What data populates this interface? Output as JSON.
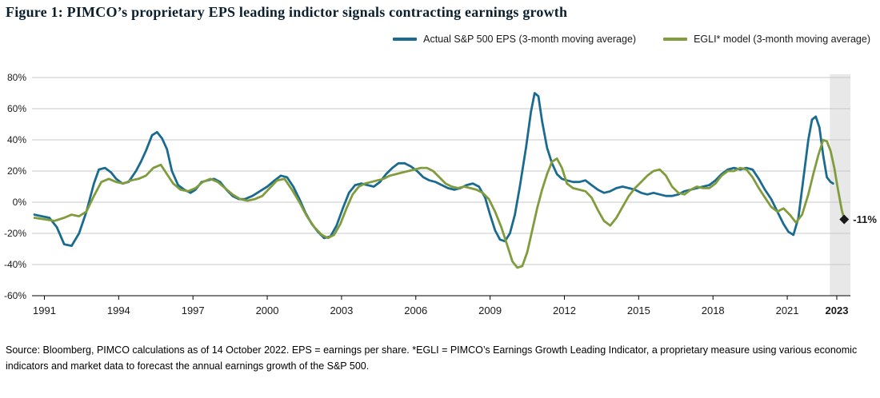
{
  "figure": {
    "title": "Figure 1: PIMCO’s proprietary EPS leading indictor signals contracting earnings growth",
    "source": "Source: Bloomberg, PIMCO calculations as of 14 October 2022. EPS = earnings per share. *EGLI = PIMCO’s Earnings Growth Leading Indicator, a proprietary measure using various economic indicators and market data to forecast the annual earnings growth of the S&P 500."
  },
  "chart_data": {
    "type": "line",
    "title": "Figure 1: PIMCO’s proprietary EPS leading indictor signals contracting earnings growth",
    "xlabel": "",
    "ylabel": "",
    "xlim": [
      1990.5,
      2023.55
    ],
    "ylim": [
      -60,
      80
    ],
    "grid": "horizontal",
    "legend_position": "top-right",
    "colors": {
      "grid": "#c8c8c8",
      "axis": "#000000",
      "text": "#1a1a1a",
      "background": "#ffffff"
    },
    "y_ticks": [
      {
        "value": 80,
        "label": "80%"
      },
      {
        "value": 60,
        "label": "60%"
      },
      {
        "value": 40,
        "label": "40%"
      },
      {
        "value": 20,
        "label": "20%"
      },
      {
        "value": 0,
        "label": "0%"
      },
      {
        "value": -20,
        "label": "-20%"
      },
      {
        "value": -40,
        "label": "-40%"
      },
      {
        "value": -60,
        "label": "-60%"
      }
    ],
    "x_ticks": [
      {
        "value": 1991,
        "label": "1991",
        "bold": false
      },
      {
        "value": 1994,
        "label": "1994",
        "bold": false
      },
      {
        "value": 1997,
        "label": "1997",
        "bold": false
      },
      {
        "value": 2000,
        "label": "2000",
        "bold": false
      },
      {
        "value": 2003,
        "label": "2003",
        "bold": false
      },
      {
        "value": 2006,
        "label": "2006",
        "bold": false
      },
      {
        "value": 2009,
        "label": "2009",
        "bold": false
      },
      {
        "value": 2012,
        "label": "2012",
        "bold": false
      },
      {
        "value": 2015,
        "label": "2015",
        "bold": false
      },
      {
        "value": 2018,
        "label": "2018",
        "bold": false
      },
      {
        "value": 2021,
        "label": "2021",
        "bold": false
      },
      {
        "value": 2023,
        "label": "2023",
        "bold": true
      }
    ],
    "shaded_region": {
      "x0": 2022.72,
      "x1": 2023.55,
      "color": "#e8e8e8"
    },
    "annotation": {
      "x": 2023.3,
      "y": -11,
      "label": "-11%",
      "marker": "diamond",
      "color": "#1a1a1a"
    },
    "series": [
      {
        "name": "Actual S&P 500 EPS (3-month moving average)",
        "color": "#1a6b8f",
        "x": [
          1990.6,
          1990.9,
          1991.2,
          1991.5,
          1991.8,
          1992.1,
          1992.4,
          1992.7,
          1993.0,
          1993.2,
          1993.45,
          1993.7,
          1993.9,
          1994.15,
          1994.4,
          1994.7,
          1994.9,
          1995.1,
          1995.35,
          1995.55,
          1995.75,
          1995.95,
          1996.15,
          1996.4,
          1996.65,
          1996.9,
          1997.1,
          1997.35,
          1997.6,
          1997.85,
          1998.1,
          1998.35,
          1998.6,
          1998.85,
          1999.1,
          1999.4,
          1999.7,
          2000.0,
          2000.3,
          2000.55,
          2000.8,
          2001.05,
          2001.3,
          2001.55,
          2001.8,
          2002.05,
          2002.3,
          2002.55,
          2002.8,
          2003.05,
          2003.3,
          2003.55,
          2003.8,
          2004.05,
          2004.3,
          2004.55,
          2004.8,
          2005.05,
          2005.3,
          2005.55,
          2005.8,
          2006.05,
          2006.3,
          2006.55,
          2006.8,
          2007.05,
          2007.3,
          2007.55,
          2007.8,
          2008.05,
          2008.3,
          2008.55,
          2008.8,
          2009.0,
          2009.2,
          2009.4,
          2009.6,
          2009.8,
          2010.0,
          2010.2,
          2010.45,
          2010.65,
          2010.8,
          2010.95,
          2011.1,
          2011.3,
          2011.5,
          2011.7,
          2011.9,
          2012.1,
          2012.35,
          2012.6,
          2012.85,
          2013.1,
          2013.35,
          2013.6,
          2013.85,
          2014.1,
          2014.35,
          2014.6,
          2014.85,
          2015.1,
          2015.35,
          2015.6,
          2015.85,
          2016.1,
          2016.35,
          2016.6,
          2016.85,
          2017.1,
          2017.35,
          2017.6,
          2017.85,
          2018.1,
          2018.35,
          2018.6,
          2018.85,
          2019.1,
          2019.35,
          2019.6,
          2019.85,
          2020.1,
          2020.35,
          2020.6,
          2020.85,
          2021.05,
          2021.25,
          2021.45,
          2021.65,
          2021.85,
          2022.0,
          2022.15,
          2022.3,
          2022.45,
          2022.6,
          2022.75,
          2022.85
        ],
        "y": [
          -8,
          -9,
          -10,
          -16,
          -27,
          -28,
          -20,
          -6,
          12,
          21,
          22,
          19,
          15,
          12,
          13,
          20,
          26,
          33,
          43,
          45,
          41,
          34,
          20,
          11,
          8,
          6,
          8,
          13,
          14,
          15,
          13,
          8,
          4,
          2,
          2,
          4,
          7,
          10,
          14,
          17,
          16,
          10,
          2,
          -7,
          -14,
          -19,
          -23,
          -22,
          -15,
          -4,
          6,
          11,
          12,
          11,
          10,
          13,
          18,
          22,
          25,
          25,
          23,
          20,
          16,
          14,
          13,
          11,
          9,
          8,
          9,
          11,
          12,
          10,
          3,
          -8,
          -18,
          -24,
          -25,
          -20,
          -8,
          10,
          35,
          58,
          70,
          68,
          52,
          35,
          25,
          18,
          15,
          14,
          13,
          13,
          14,
          11,
          8,
          6,
          7,
          9,
          10,
          9,
          8,
          6,
          5,
          6,
          5,
          4,
          4,
          5,
          7,
          8,
          9,
          10,
          11,
          14,
          18,
          21,
          22,
          21,
          22,
          21,
          15,
          8,
          2,
          -6,
          -14,
          -19,
          -21,
          -10,
          15,
          40,
          53,
          55,
          48,
          30,
          16,
          13,
          12
        ]
      },
      {
        "name": "EGLI* model (3-month moving average)",
        "color": "#819c3d",
        "x": [
          1990.6,
          1991.0,
          1991.4,
          1991.8,
          1992.1,
          1992.4,
          1992.7,
          1993.0,
          1993.3,
          1993.6,
          1993.9,
          1994.2,
          1994.5,
          1994.8,
          1995.1,
          1995.4,
          1995.7,
          1995.95,
          1996.2,
          1996.5,
          1996.8,
          1997.1,
          1997.4,
          1997.7,
          1998.0,
          1998.3,
          1998.6,
          1998.9,
          1999.2,
          1999.5,
          1999.8,
          2000.1,
          2000.4,
          2000.7,
          2001.0,
          2001.3,
          2001.6,
          2001.9,
          2002.2,
          2002.45,
          2002.7,
          2002.95,
          2003.2,
          2003.45,
          2003.7,
          2003.95,
          2004.2,
          2004.45,
          2004.7,
          2004.95,
          2005.2,
          2005.45,
          2005.7,
          2005.95,
          2006.2,
          2006.45,
          2006.7,
          2006.95,
          2007.2,
          2007.45,
          2007.7,
          2007.95,
          2008.2,
          2008.45,
          2008.7,
          2008.95,
          2009.2,
          2009.45,
          2009.7,
          2009.9,
          2010.1,
          2010.3,
          2010.5,
          2010.7,
          2010.9,
          2011.1,
          2011.3,
          2011.5,
          2011.7,
          2011.9,
          2012.1,
          2012.35,
          2012.6,
          2012.85,
          2013.1,
          2013.35,
          2013.6,
          2013.85,
          2014.1,
          2014.35,
          2014.6,
          2014.85,
          2015.1,
          2015.35,
          2015.6,
          2015.85,
          2016.1,
          2016.35,
          2016.6,
          2016.85,
          2017.1,
          2017.35,
          2017.6,
          2017.85,
          2018.1,
          2018.35,
          2018.6,
          2018.85,
          2019.1,
          2019.35,
          2019.6,
          2019.85,
          2020.1,
          2020.35,
          2020.6,
          2020.85,
          2021.1,
          2021.35,
          2021.6,
          2021.85,
          2022.05,
          2022.25,
          2022.45,
          2022.6,
          2022.75,
          2022.9,
          2023.05,
          2023.2,
          2023.3
        ],
        "y": [
          -10,
          -11,
          -12,
          -10,
          -8,
          -9,
          -6,
          4,
          13,
          15,
          13,
          12,
          14,
          15,
          17,
          22,
          24,
          18,
          12,
          8,
          7,
          9,
          13,
          15,
          13,
          9,
          5,
          2,
          1,
          2,
          4,
          9,
          14,
          15,
          8,
          0,
          -9,
          -16,
          -21,
          -23,
          -21,
          -14,
          -4,
          5,
          10,
          12,
          13,
          14,
          15,
          17,
          18,
          19,
          20,
          21,
          22,
          22,
          20,
          16,
          12,
          10,
          9,
          10,
          9,
          8,
          6,
          2,
          -6,
          -16,
          -28,
          -38,
          -42,
          -41,
          -32,
          -18,
          -4,
          8,
          18,
          26,
          28,
          22,
          12,
          9,
          8,
          7,
          3,
          -5,
          -12,
          -15,
          -10,
          -3,
          4,
          9,
          13,
          17,
          20,
          21,
          17,
          10,
          6,
          5,
          8,
          10,
          9,
          9,
          12,
          17,
          20,
          20,
          22,
          21,
          16,
          9,
          3,
          -3,
          -6,
          -4,
          -8,
          -13,
          -8,
          5,
          18,
          30,
          40,
          39,
          33,
          22,
          8,
          -5,
          -11
        ]
      }
    ]
  }
}
